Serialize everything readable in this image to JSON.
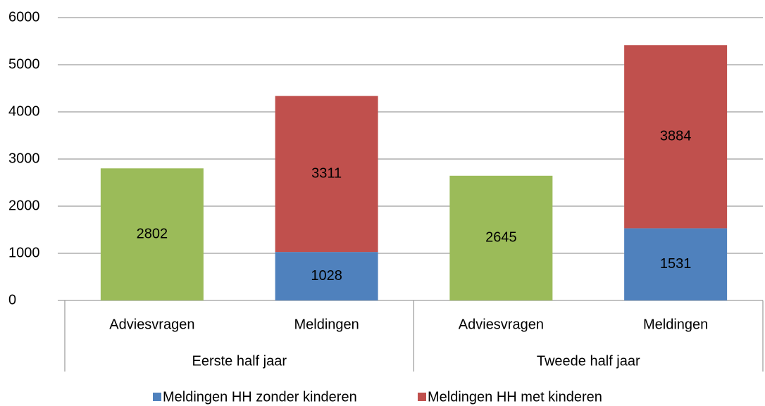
{
  "chart_data": {
    "type": "bar",
    "stacked": true,
    "categories": [
      "Adviesvragen",
      "Meldingen",
      "Adviesvragen",
      "Meldingen"
    ],
    "groups": [
      "Eerste half jaar",
      "Tweede half jaar"
    ],
    "series": [
      {
        "color": "#9bbb59",
        "values": [
          2802,
          null,
          2645,
          null
        ]
      },
      {
        "name": "Meldingen HH zonder kinderen",
        "color": "#4f81bd",
        "values": [
          null,
          1028,
          null,
          1531
        ]
      },
      {
        "name": "Meldingen HH met kinderen",
        "color": "#c0504d",
        "values": [
          null,
          3311,
          null,
          3884
        ]
      }
    ],
    "ylim": [
      0,
      6000
    ],
    "yticks": [
      0,
      1000,
      2000,
      3000,
      4000,
      5000,
      6000
    ],
    "grid": true,
    "legend": "bottom"
  }
}
